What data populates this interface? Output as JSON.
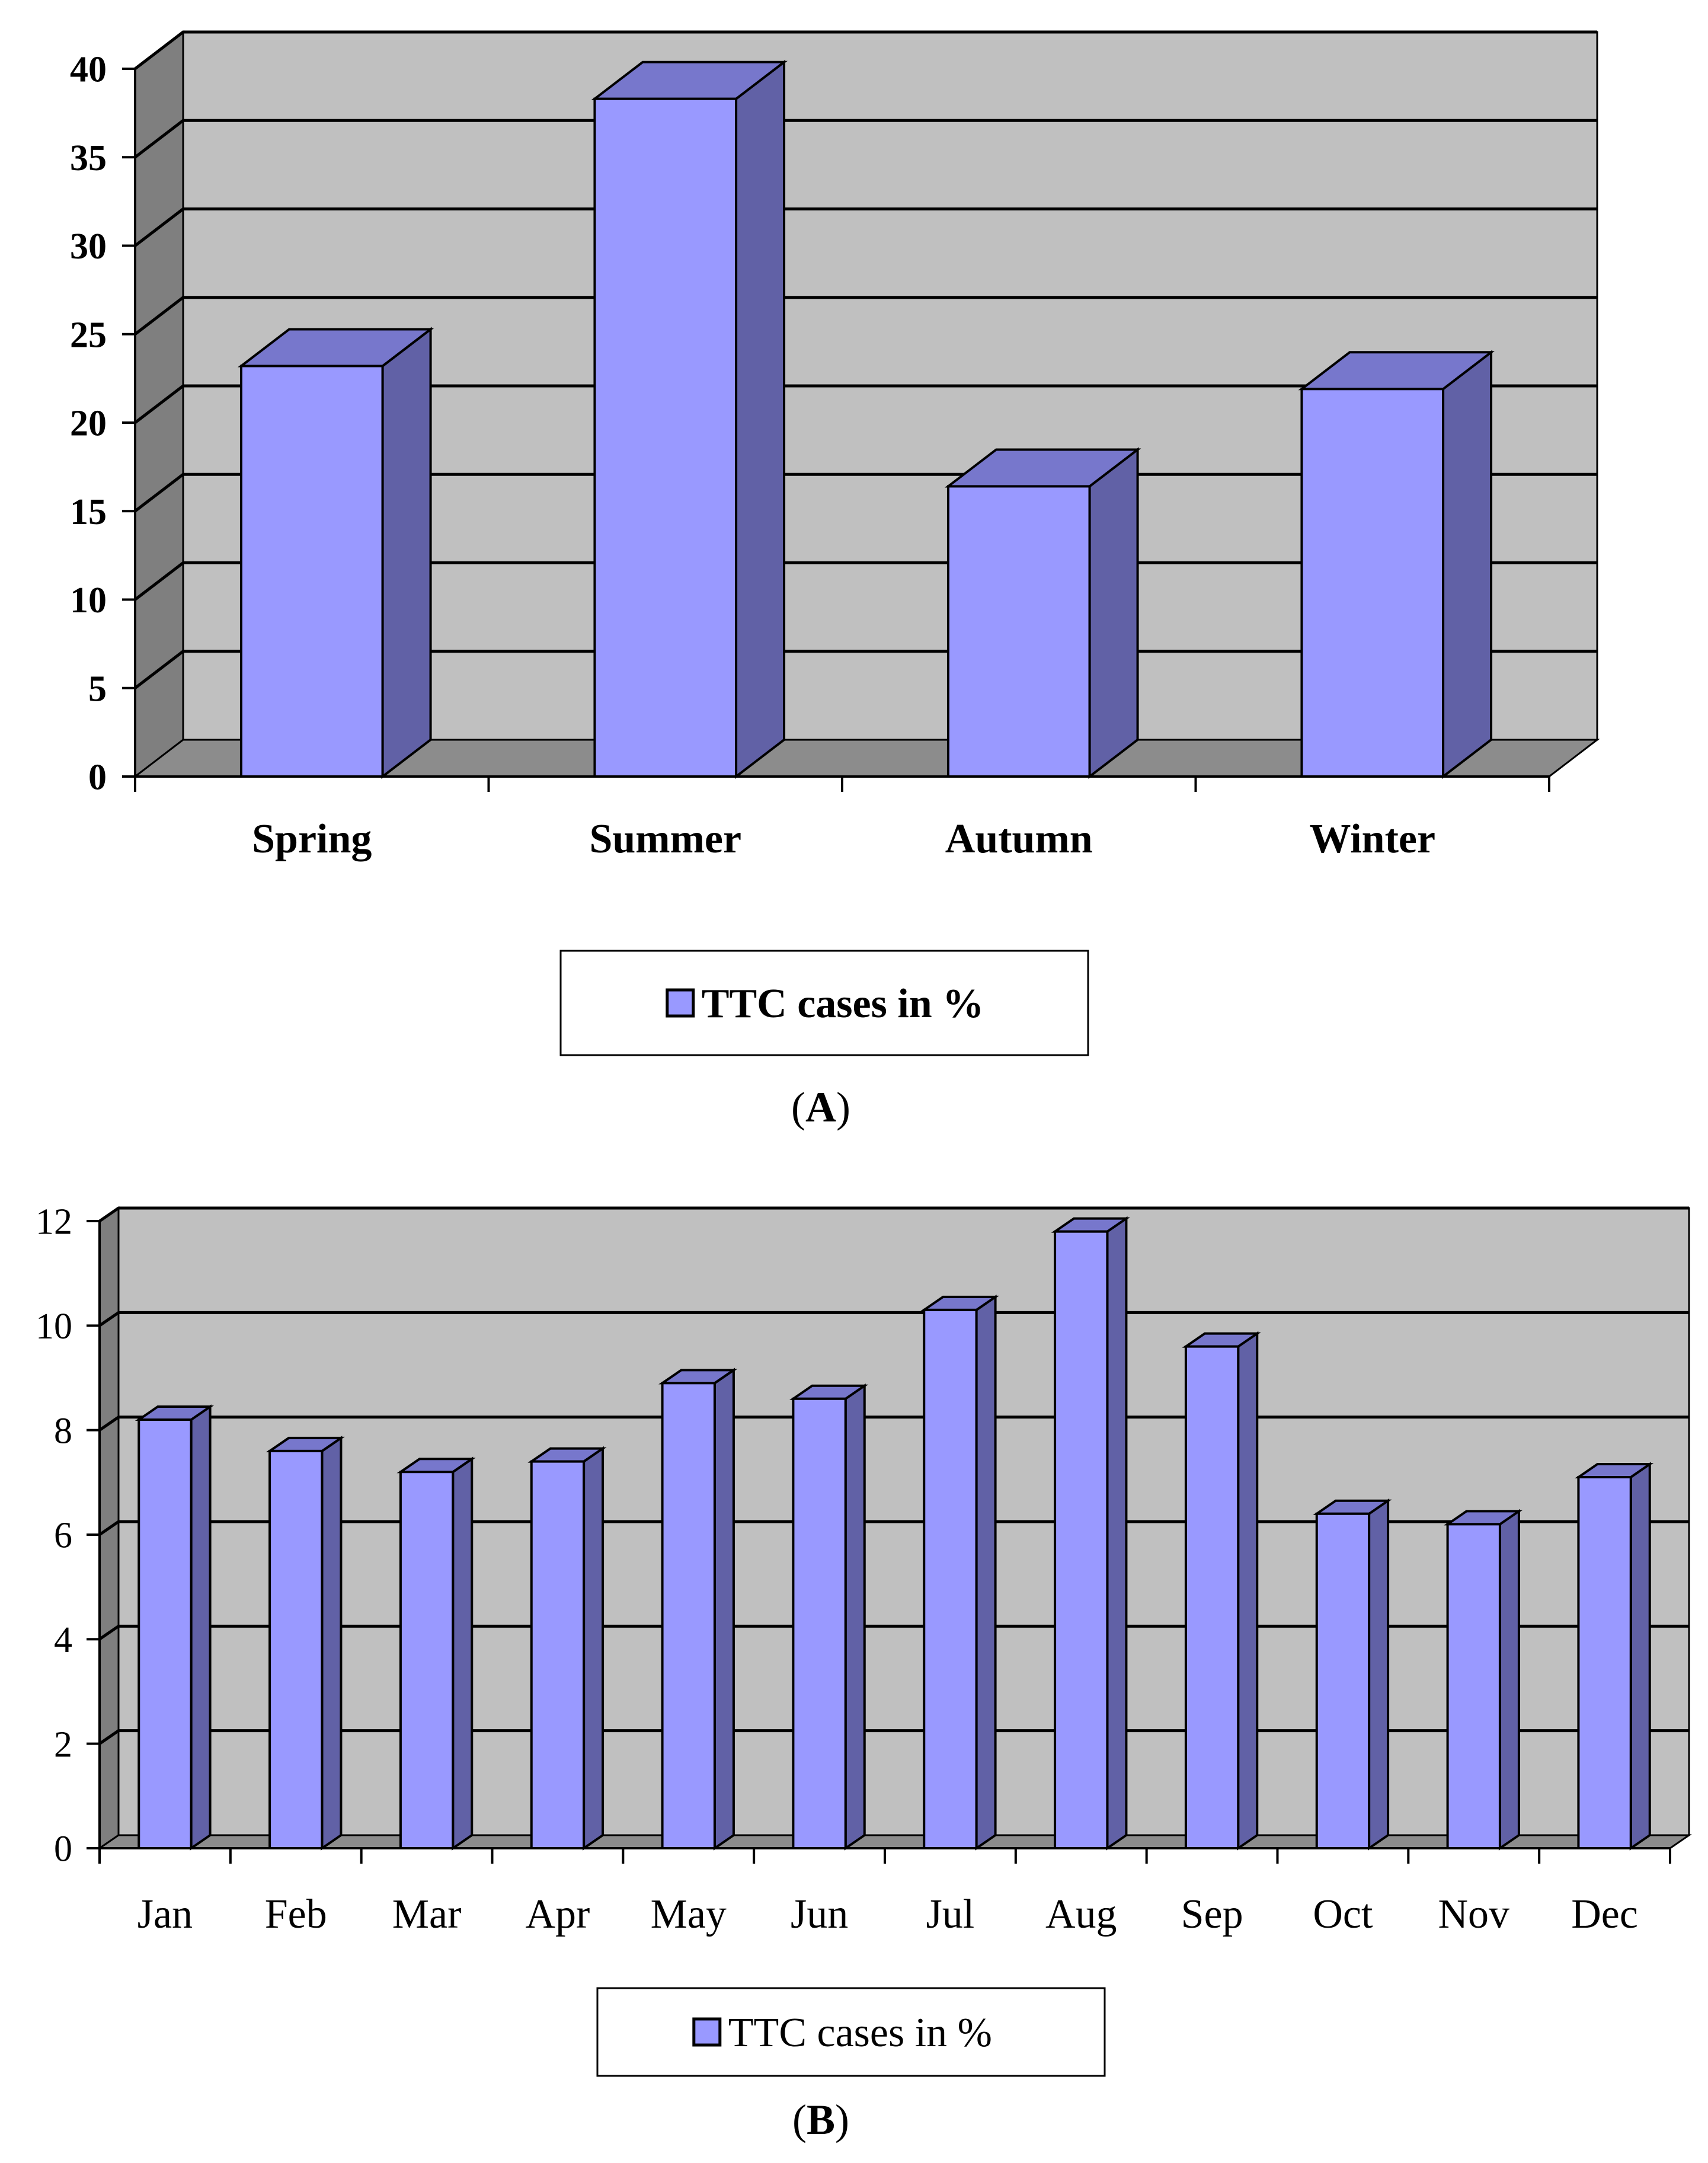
{
  "chart_data": [
    {
      "panel_label": "A",
      "type": "bar",
      "title": "",
      "xlabel": "",
      "ylabel": "",
      "categories": [
        "Spring",
        "Summer",
        "Autumn",
        "Winter"
      ],
      "series": [
        {
          "name": "TTC cases in %",
          "values": [
            23.2,
            38.3,
            16.4,
            21.9
          ]
        }
      ],
      "ylim": [
        0,
        40
      ],
      "yticks": [
        0,
        5,
        10,
        15,
        20,
        25,
        30,
        35,
        40
      ],
      "grid": true,
      "legend": "bottom-center",
      "colors": {
        "front": "#9999ff",
        "side": "#6161a6",
        "top": "#7777cc",
        "wall": "#c0c0c0",
        "left_wall": "#7f7f7f",
        "floor": "#8c8c8c"
      }
    },
    {
      "panel_label": "B",
      "type": "bar",
      "title": "",
      "xlabel": "",
      "ylabel": "",
      "categories": [
        "Jan",
        "Feb",
        "Mar",
        "Apr",
        "May",
        "Jun",
        "Jul",
        "Aug",
        "Sep",
        "Oct",
        "Nov",
        "Dec"
      ],
      "series": [
        {
          "name": "TTC cases in %",
          "values": [
            8.2,
            7.6,
            7.2,
            7.4,
            8.9,
            8.6,
            10.3,
            11.8,
            9.6,
            6.4,
            6.2,
            7.1
          ]
        }
      ],
      "ylim": [
        0,
        12
      ],
      "yticks": [
        0,
        2,
        4,
        6,
        8,
        10,
        12
      ],
      "grid": true,
      "legend": "bottom-center",
      "colors": {
        "front": "#9999ff",
        "side": "#6161a6",
        "top": "#7777cc",
        "wall": "#c0c0c0",
        "left_wall": "#7f7f7f",
        "floor": "#8c8c8c"
      }
    }
  ]
}
